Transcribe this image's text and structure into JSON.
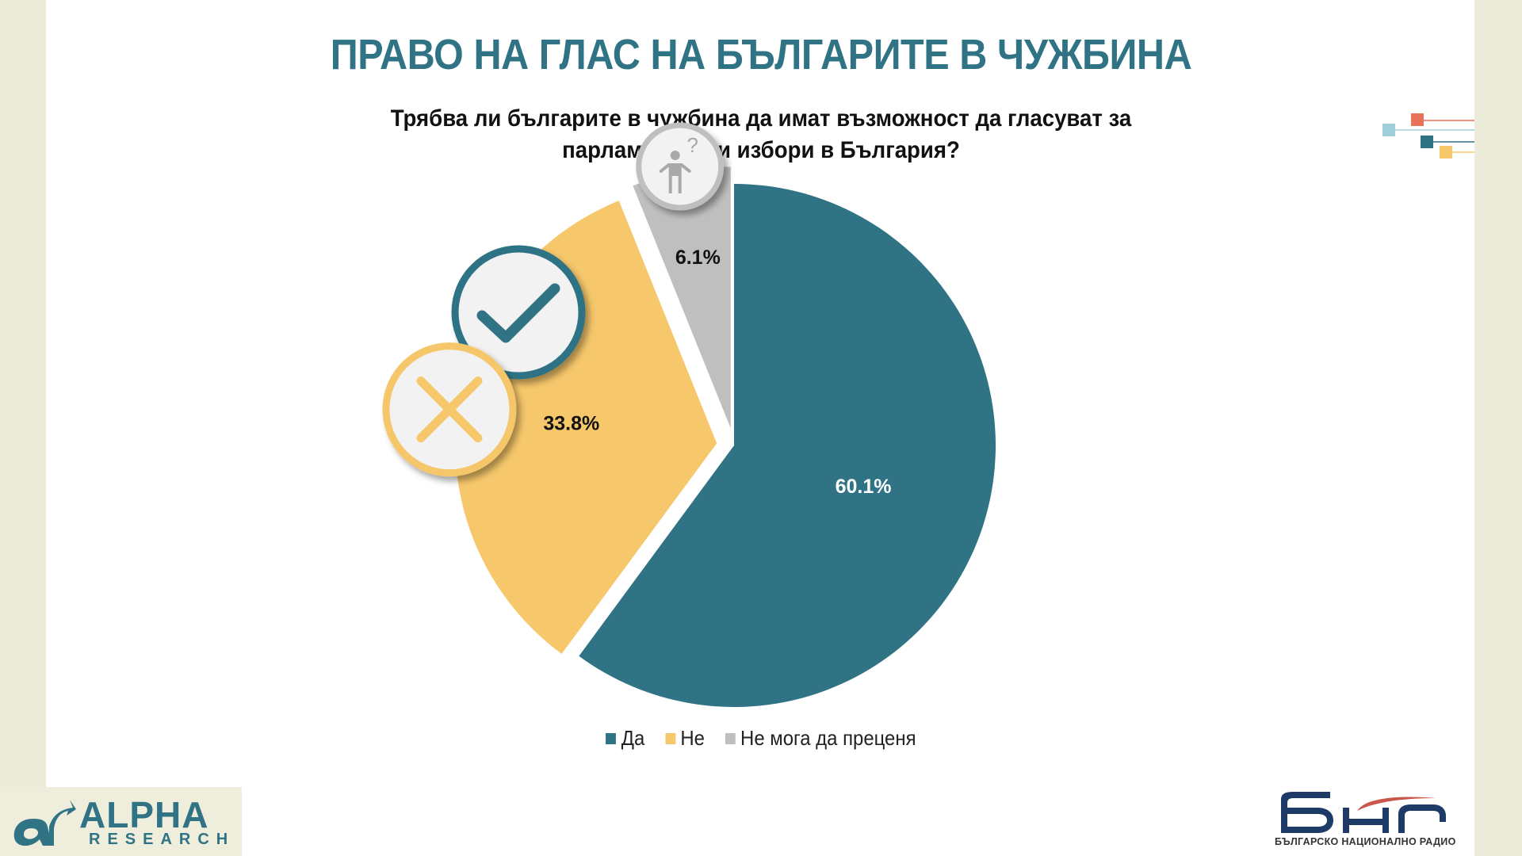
{
  "title": "ПРАВО НА ГЛАС НА БЪЛГАРИТЕ В ЧУЖБИНА",
  "question": {
    "line1": "Трябва ли българите в чужбина да имат възможност да гласуват за",
    "line2": "парламентарни избори в България?"
  },
  "chart_data": {
    "type": "pie",
    "title": "Трябва ли българите в чужбина да имат възможност да гласуват за парламентарни избори в България?",
    "slices": [
      {
        "label": "Да",
        "value": 60.1,
        "value_label": "60.1%",
        "color": "#2F7385",
        "icon": "check-icon"
      },
      {
        "label": "Не",
        "value": 33.8,
        "value_label": "33.8%",
        "color": "#F6C76B",
        "icon": "cross-icon"
      },
      {
        "label": "Не мога да преценя",
        "value": 6.1,
        "value_label": "6.1%",
        "color": "#BFBFBF",
        "icon": "question-person-icon"
      }
    ],
    "legend_position": "bottom",
    "exploded": [
      "Не",
      "Не мога да преценя"
    ]
  },
  "logos": {
    "alpha_text": "ALPHA",
    "alpha_sub": "RESEARCH",
    "bnr_text": "БНР",
    "bnr_sub": "БЪЛГАРСКО НАЦИОНАЛНО РАДИО"
  },
  "colors": {
    "accent": "#2F7385",
    "deco_red": "#E8725A",
    "deco_light_blue": "#9FCFD8",
    "deco_yellow": "#F6C76B"
  }
}
